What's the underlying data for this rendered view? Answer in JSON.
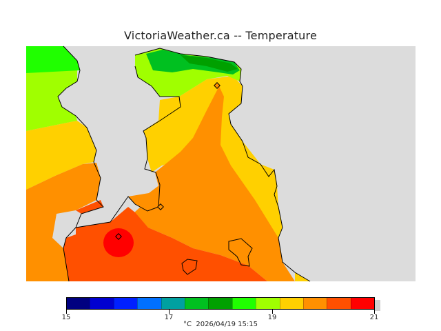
{
  "header": {
    "title": "VictoriaWeather.ca -- Temperature"
  },
  "legend": {
    "unit": "°C",
    "min": 15,
    "max": 21,
    "tick_labels": [
      "15",
      "17",
      "19",
      "21"
    ],
    "colors": [
      "#000080",
      "#0000d0",
      "#0020ff",
      "#0070ff",
      "#00a0a0",
      "#00c020",
      "#00a000",
      "#20ff00",
      "#a0ff00",
      "#ffd000",
      "#ff9000",
      "#ff5000",
      "#ff0000"
    ]
  },
  "footer": {
    "unit": "°C",
    "timestamp": "2026/04/19 15:15"
  },
  "map": {
    "land_color": "#dcdcdc",
    "zones": {
      "green": "#00c020",
      "light_green": "#a0ff00",
      "yellow": "#ffd000",
      "orange": "#ff9000",
      "red_orange": "#ff5000",
      "red": "#ff0000"
    },
    "stations": [
      "station-north",
      "station-centre",
      "station-hotspot"
    ]
  }
}
